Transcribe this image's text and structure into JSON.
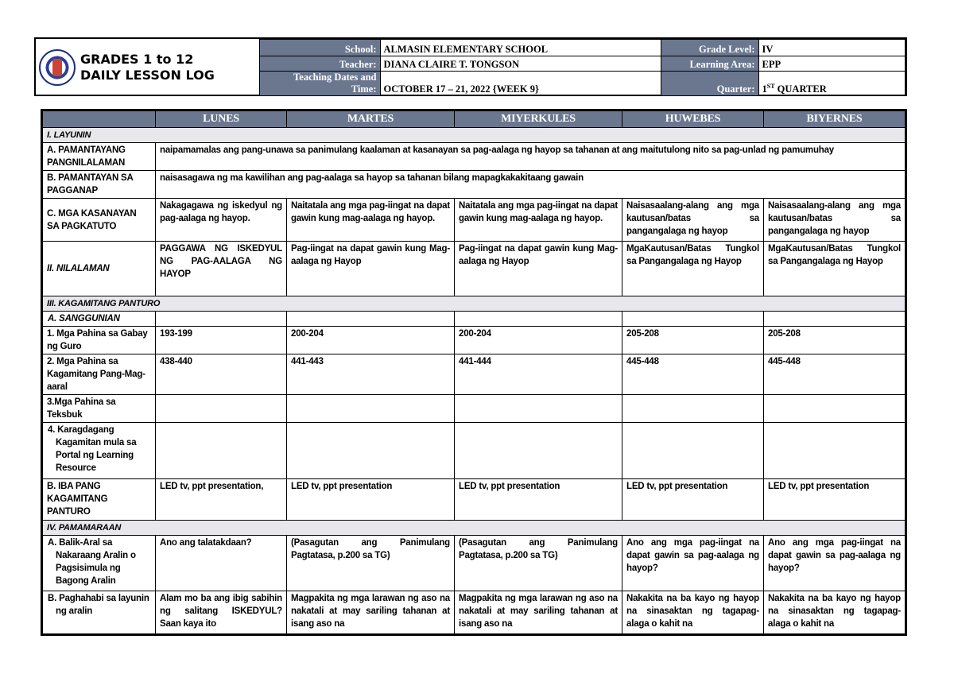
{
  "header": {
    "title_line1": "GRADES 1 to 12",
    "title_line2": "DAILY LESSON LOG",
    "school_label": "School:",
    "school": "ALMASIN ELEMENTARY SCHOOL",
    "teacher_label": "Teacher:",
    "teacher": "DIANA CLAIRE T. TONGSON",
    "dates_label_1": "Teaching Dates and",
    "dates_label_2": "Time:",
    "dates": "OCTOBER 17 – 21, 2022 {WEEK 9}",
    "grade_label": "Grade Level:",
    "grade": "IV",
    "area_label": "Learning Area:",
    "area": "EPP",
    "quarter_label": "Quarter:",
    "quarter_num": "1",
    "quarter_sup": "ST",
    "quarter_text": " QUARTER",
    "logo_text": "KAGAWARAN NG EDUKASYON"
  },
  "days": [
    "LUNES",
    "MARTES",
    "MIYERKULES",
    "HUWEBES",
    "BIYERNES"
  ],
  "rows": [
    {
      "type": "sec",
      "label": "I. LAYUNIN"
    },
    {
      "type": "span",
      "label": "A. PAMANTAYANG PANGNILALAMAN",
      "text": "naipamamalas ang pang-unawa sa panimulang kaalaman at kasanayan sa pag-aalaga ng hayop sa tahanan at ang maitutulong nito sa pag-unlad ng pamumuhay"
    },
    {
      "type": "span",
      "label": "B. PAMANTAYAN SA PAGGANAP",
      "text": "naisasagawa ng ma kawilihan ang pag-aalaga sa hayop sa tahanan bilang mapagkakakitaang gawain"
    },
    {
      "type": "cells",
      "label": "C. MGA KASANAYAN SA PAGKATUTO",
      "mid": true,
      "cells": [
        "Nakagagawa ng iskedyul ng pag-aalaga ng hayop.",
        "Naitatala ang mga pag-iingat na dapat gawin kung mag-aalaga ng hayop.",
        "Naitatala ang mga pag-iingat na dapat gawin kung mag-aalaga ng hayop.",
        "Naisasaalang-alang ang mga kautusan/batas sa pangangalaga ng hayop",
        "Naisasaalang-alang ang mga kautusan/batas sa pangangalaga ng hayop"
      ]
    },
    {
      "type": "cells",
      "label": "II. NILALAMAN",
      "italic": true,
      "mid": true,
      "cells": [
        "PAGGAWA NG ISKEDYUL NG PAG-AALAGA NG HAYOP",
        "Pag-iingat na dapat gawin kung Mag-aalaga ng Hayop",
        "Pag-iingat na dapat gawin kung Mag-aalaga ng Hayop",
        "MgaKautusan/Batas Tungkol sa Pangangalaga ng Hayop",
        "MgaKautusan/Batas Tungkol sa Pangangalaga ng Hayop"
      ]
    },
    {
      "type": "sec",
      "label": "III. KAGAMITANG PANTURO"
    },
    {
      "type": "cells",
      "label": "A. SANGGUNIAN",
      "italic": true,
      "indent": true,
      "cells": [
        "",
        "",
        "",
        "",
        ""
      ]
    },
    {
      "type": "cells",
      "label": "1. Mga Pahina sa Gabay ng Guro",
      "cells": [
        "193-199",
        "200-204",
        "200-204",
        "205-208",
        "205-208"
      ]
    },
    {
      "type": "cells",
      "label": "2. Mga Pahina sa Kagamitang Pang-Mag-aaral",
      "cells": [
        "438-440",
        "441-443",
        "441-444",
        "445-448",
        "445-448"
      ]
    },
    {
      "type": "cells",
      "label": "3.Mga Pahina sa Teksbuk",
      "cells": [
        "",
        "",
        "",
        "",
        ""
      ]
    },
    {
      "type": "cells",
      "label": "4. Karagdagang Kagamitan mula sa Portal ng Learning Resource",
      "indent": true,
      "cells": [
        "",
        "",
        "",
        "",
        ""
      ]
    },
    {
      "type": "cells",
      "label": "B. IBA PANG KAGAMITANG PANTURO",
      "cells": [
        "LED tv, ppt presentation,",
        "LED tv, ppt presentation",
        "LED tv, ppt presentation",
        "LED tv, ppt presentation",
        "LED tv, ppt presentation"
      ]
    },
    {
      "type": "sec",
      "label": "IV. PAMAMARAAN"
    },
    {
      "type": "cells",
      "label": "A. Balik-Aral sa Nakaraang Aralin o Pagsisimula ng Bagong Aralin",
      "indent": true,
      "cells": [
        "Ano ang talatakdaan?",
        "(Pasagutan ang Panimulang Pagtatasa, p.200 sa TG)",
        "(Pasagutan ang Panimulang Pagtatasa, p.200 sa TG)",
        "Ano ang mga pag-iingat na dapat gawin sa pag-aalaga ng hayop?",
        "Ano ang mga pag-iingat na dapat gawin sa pag-aalaga ng hayop?"
      ]
    },
    {
      "type": "cells",
      "label": "B. Paghahabi sa layunin ng aralin",
      "indent": true,
      "cells": [
        "Alam mo ba ang ibig sabihin ng salitang ISKEDYUL? Saan kaya ito",
        "Magpakita ng mga larawan ng aso na nakatali at may sariling tahanan at isang aso na",
        "Magpakita ng mga larawan ng aso na nakatali at may sariling tahanan at isang aso na",
        "Nakakita na ba kayo ng hayop na sinasaktan ng tagapag-alaga o kahit na",
        "Nakakita na ba kayo ng hayop na sinasaktan ng tagapag-alaga o kahit na"
      ]
    }
  ]
}
